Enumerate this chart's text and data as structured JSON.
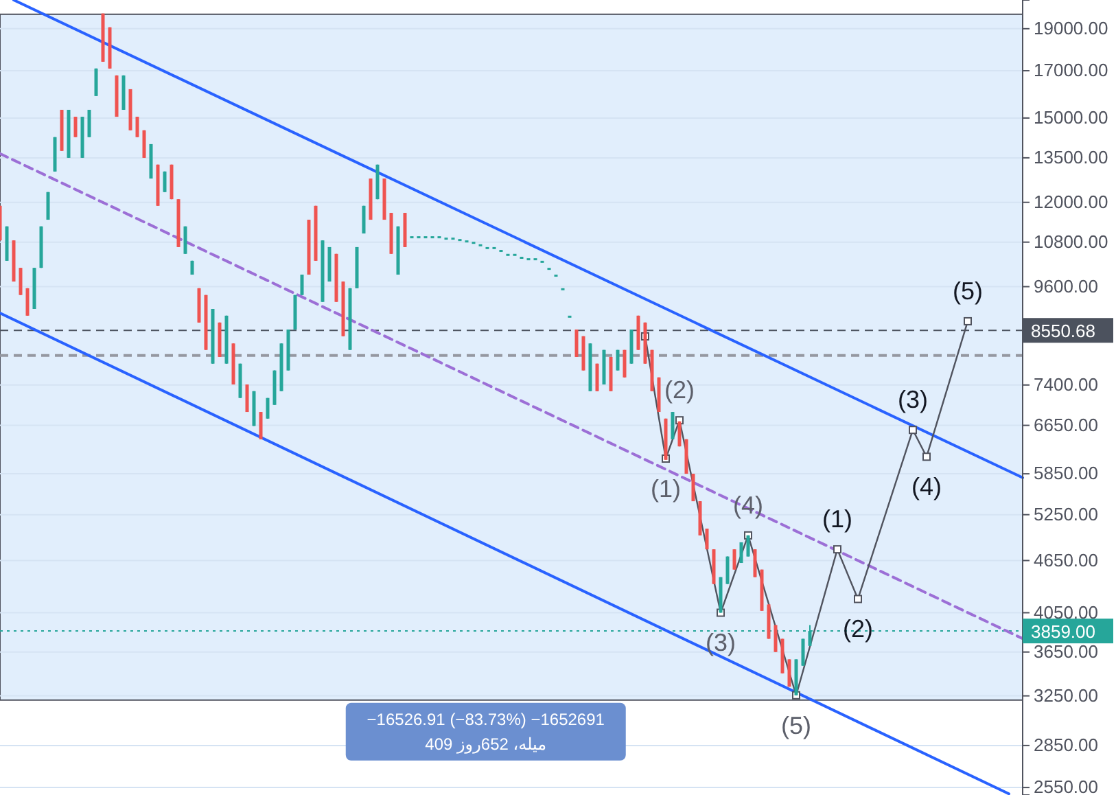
{
  "chart_data": {
    "type": "candlestick",
    "log": true,
    "grid": "y",
    "tick_labels": "y",
    "ylim": [
      2500,
      20500
    ],
    "yticks": [
      {
        "value": 2550,
        "label": "2550.00"
      },
      {
        "value": 2850,
        "label": "2850.00"
      },
      {
        "value": 3250,
        "label": "3250.00"
      },
      {
        "value": 3650,
        "label": "3650.00"
      },
      {
        "value": 4050,
        "label": "4050.00"
      },
      {
        "value": 4650,
        "label": "4650.00"
      },
      {
        "value": 5250,
        "label": "5250.00"
      },
      {
        "value": 5850,
        "label": "5850.00"
      },
      {
        "value": 6650,
        "label": "6650.00"
      },
      {
        "value": 7400,
        "label": "7400.00"
      },
      {
        "value": 9600,
        "label": "9600.00"
      },
      {
        "value": 10800,
        "label": "10800.00"
      },
      {
        "value": 12000,
        "label": "12000.00"
      },
      {
        "value": 13500,
        "label": "13500.00"
      },
      {
        "value": 15000,
        "label": "15000.00"
      },
      {
        "value": 17000,
        "label": "17000.00"
      },
      {
        "value": 19000,
        "label": "19000.00"
      }
    ],
    "categories": [
      null,
      null,
      null,
      null,
      null,
      null,
      null,
      null,
      null,
      null,
      null,
      null,
      null,
      null,
      null,
      null,
      null,
      null,
      null,
      null,
      null,
      null,
      null,
      null,
      null,
      null,
      null,
      null,
      null,
      null,
      null,
      null,
      null,
      null,
      null,
      null,
      null,
      null,
      null,
      null,
      null,
      null,
      null,
      null,
      null,
      null,
      null,
      null,
      null,
      null,
      null,
      null,
      null,
      null,
      null,
      null,
      null,
      null,
      null,
      null,
      null,
      null,
      null,
      null,
      null,
      null,
      null,
      null,
      null,
      null,
      null,
      null,
      null,
      null,
      null,
      null,
      null,
      null,
      null,
      null,
      null,
      null,
      null,
      null,
      null,
      null,
      null,
      null,
      null,
      null,
      null,
      null,
      null,
      null,
      null,
      null,
      null,
      null,
      null,
      null,
      null,
      null,
      null,
      null,
      null,
      null,
      null,
      null,
      null,
      null,
      null,
      null,
      null,
      null,
      null,
      null,
      null,
      null,
      null,
      null,
      null,
      null,
      null,
      null,
      null,
      null,
      null,
      null,
      null,
      null,
      null,
      null,
      null,
      null,
      null,
      null,
      null,
      null,
      null,
      null,
      null,
      null,
      null,
      null,
      null,
      null,
      null,
      null,
      null,
      null
    ],
    "ohlc": [
      [
        11890,
        11890,
        10850,
        10850
      ],
      [
        10280,
        11260,
        10280,
        11260
      ],
      [
        10850,
        10850,
        9730,
        9730
      ],
      [
        10090,
        10090,
        9390,
        9390
      ],
      [
        9560,
        9560,
        8890,
        8890
      ],
      [
        9050,
        10090,
        9050,
        10090
      ],
      [
        10090,
        11260,
        10090,
        11260
      ],
      [
        11460,
        12330,
        11460,
        12330
      ],
      [
        13020,
        14260,
        13020,
        14260
      ],
      [
        15330,
        15330,
        13750,
        13750
      ],
      [
        13500,
        15330,
        13500,
        15330
      ],
      [
        15050,
        15050,
        14260,
        14260
      ],
      [
        13500,
        15050,
        13500,
        15050
      ],
      [
        14260,
        15330,
        14260,
        15330
      ],
      [
        15900,
        17100,
        15900,
        17100
      ],
      [
        19780,
        19780,
        17410,
        17410
      ],
      [
        19070,
        19070,
        17100,
        17100
      ],
      [
        16790,
        16790,
        15050,
        15050
      ],
      [
        15330,
        16790,
        15330,
        16790
      ],
      [
        16190,
        16190,
        14520,
        14520
      ],
      [
        15050,
        15050,
        14260,
        14260
      ],
      [
        14520,
        14520,
        13500,
        13500
      ],
      [
        12780,
        14000,
        12780,
        14000
      ],
      [
        13260,
        13260,
        11890,
        11890
      ],
      [
        12330,
        13020,
        12330,
        13020
      ],
      [
        13260,
        13260,
        12100,
        12100
      ],
      [
        12100,
        12100,
        10660,
        10660
      ],
      [
        10470,
        11260,
        10470,
        11260
      ],
      [
        9910,
        10280,
        9910,
        10280
      ],
      [
        9560,
        9560,
        8730,
        8730
      ],
      [
        9390,
        9390,
        8120,
        8120
      ],
      [
        7830,
        9050,
        7830,
        9050
      ],
      [
        8730,
        8730,
        7970,
        7970
      ],
      [
        7830,
        8890,
        7830,
        8890
      ],
      [
        8260,
        8260,
        7410,
        7410
      ],
      [
        7150,
        7830,
        7150,
        7830
      ],
      [
        7410,
        7410,
        6890,
        6890
      ],
      [
        6640,
        7280,
        6640,
        7280
      ],
      [
        6890,
        6890,
        6410,
        6410
      ],
      [
        6770,
        7150,
        6770,
        7150
      ],
      [
        7020,
        7690,
        7020,
        7690
      ],
      [
        7280,
        8260,
        7280,
        8260
      ],
      [
        7690,
        8570,
        7690,
        8570
      ],
      [
        8570,
        9390,
        8570,
        9390
      ],
      [
        9390,
        9910,
        9390,
        9910
      ],
      [
        11460,
        11460,
        9910,
        9910
      ],
      [
        11890,
        11890,
        10280,
        10280
      ],
      [
        9220,
        10850,
        9220,
        10850
      ],
      [
        9730,
        10660,
        9730,
        10660
      ],
      [
        10470,
        10470,
        9220,
        9220
      ],
      [
        9730,
        9730,
        8420,
        8420
      ],
      [
        8120,
        9560,
        8120,
        9560
      ],
      [
        9560,
        10660,
        9560,
        10660
      ],
      [
        11050,
        11890,
        11050,
        11890
      ],
      [
        12780,
        12780,
        11460,
        11460
      ],
      [
        12100,
        13260,
        12100,
        13260
      ],
      [
        12780,
        12780,
        11460,
        11460
      ],
      [
        11670,
        11670,
        10470,
        10470
      ],
      [
        9910,
        11260,
        9910,
        11260
      ],
      [
        11670,
        11670,
        10660,
        10660
      ],
      [
        10970,
        10970,
        10970,
        10970
      ],
      [
        10970,
        10970,
        10970,
        10970
      ],
      [
        10970,
        10970,
        10970,
        10970
      ],
      [
        10970,
        10970,
        10970,
        10970
      ],
      [
        10970,
        10970,
        10970,
        10970
      ],
      [
        10930,
        10930,
        10930,
        10930
      ],
      [
        10930,
        10930,
        10930,
        10930
      ],
      [
        10890,
        10890,
        10890,
        10890
      ],
      [
        10850,
        10850,
        10850,
        10850
      ],
      [
        10810,
        10810,
        10810,
        10810
      ],
      [
        10740,
        10740,
        10740,
        10740
      ],
      [
        10660,
        10660,
        10660,
        10660
      ],
      [
        10660,
        10660,
        10660,
        10660
      ],
      [
        10580,
        10580,
        10580,
        10580
      ],
      [
        10470,
        10470,
        10470,
        10470
      ],
      [
        10470,
        10470,
        10470,
        10470
      ],
      [
        10390,
        10390,
        10390,
        10390
      ],
      [
        10350,
        10350,
        10350,
        10350
      ],
      [
        10350,
        10350,
        10350,
        10350
      ],
      [
        10280,
        10280,
        10280,
        10280
      ],
      [
        10090,
        10090,
        10090,
        10090
      ],
      [
        9910,
        9910,
        9910,
        9910
      ],
      [
        9560,
        9560,
        9560,
        9560
      ],
      [
        8890,
        8890,
        8890,
        8890
      ],
      [
        8570,
        8570,
        7970,
        7970
      ],
      [
        8420,
        8420,
        7690,
        7690
      ],
      [
        7280,
        8260,
        7280,
        8260
      ],
      [
        7830,
        7830,
        7280,
        7280
      ],
      [
        7410,
        8120,
        7410,
        8120
      ],
      [
        7970,
        7970,
        7280,
        7280
      ],
      [
        7690,
        8120,
        7690,
        8120
      ],
      [
        8120,
        8120,
        7550,
        7550
      ],
      [
        7830,
        8570,
        7830,
        8570
      ],
      [
        8890,
        8890,
        8120,
        8120
      ],
      [
        8730,
        8730,
        7830,
        7830
      ],
      [
        8120,
        8120,
        7280,
        7280
      ],
      [
        7550,
        7550,
        6890,
        6890
      ],
      [
        6770,
        6770,
        6070,
        6070
      ],
      [
        6410,
        6890,
        6410,
        6890
      ],
      [
        6720,
        6720,
        6290,
        6290
      ],
      [
        6410,
        6410,
        5850,
        5850
      ],
      [
        5850,
        5850,
        5440,
        5440
      ],
      [
        5440,
        5440,
        4970,
        4970
      ],
      [
        5060,
        5060,
        4790,
        4790
      ],
      [
        4790,
        4790,
        4370,
        4370
      ],
      [
        4050,
        4450,
        4050,
        4450
      ],
      [
        4370,
        4700,
        4370,
        4700
      ],
      [
        4790,
        4790,
        4540,
        4540
      ],
      [
        4620,
        4880,
        4620,
        4880
      ],
      [
        4700,
        4970,
        4700,
        4970
      ],
      [
        4790,
        4790,
        4450,
        4450
      ],
      [
        4540,
        4540,
        4070,
        4070
      ],
      [
        4140,
        4140,
        3780,
        3780
      ],
      [
        3920,
        3920,
        3650,
        3650
      ],
      [
        3780,
        3780,
        3450,
        3450
      ],
      [
        3580,
        3580,
        3330,
        3330
      ],
      [
        3255,
        3580,
        3255,
        3580
      ],
      [
        3520,
        3780,
        3520,
        3780
      ],
      [
        3710,
        3920,
        3710,
        3859
      ],
      null,
      null,
      null,
      null,
      null,
      null,
      null,
      null,
      null,
      null,
      null,
      null,
      null,
      null,
      null,
      null,
      null,
      null,
      null,
      null,
      null,
      null,
      null,
      null,
      null,
      null,
      null,
      null,
      null,
      null,
      null
    ],
    "series": [
      {
        "type": "line",
        "color": "#2962ff",
        "line_style": "solid",
        "values": [
          null,
          null,
          20500,
          null,
          null,
          null,
          null,
          null,
          null,
          null,
          null,
          null,
          null,
          null,
          null,
          null,
          null,
          null,
          null,
          null,
          null,
          null,
          null,
          null,
          null,
          null,
          null,
          null,
          null,
          null,
          null,
          null,
          null,
          null,
          null,
          null,
          null,
          null,
          null,
          null,
          null,
          null,
          null,
          null,
          null,
          null,
          null,
          null,
          null,
          null,
          null,
          null,
          null,
          null,
          null,
          null,
          null,
          null,
          null,
          null,
          null,
          null,
          null,
          null,
          null,
          null,
          null,
          null,
          null,
          null,
          null,
          null,
          null,
          null,
          null,
          null,
          null,
          null,
          null,
          null,
          null,
          null,
          null,
          null,
          null,
          null,
          null,
          null,
          null,
          null,
          null,
          null,
          null,
          null,
          null,
          null,
          null,
          null,
          null,
          null,
          null,
          null,
          null,
          null,
          null,
          null,
          null,
          null,
          null,
          null,
          null,
          null,
          null,
          null,
          null,
          null,
          null,
          null,
          null,
          null,
          null,
          null,
          null,
          null,
          null,
          null,
          null,
          null,
          null,
          null,
          null,
          null,
          null,
          null,
          null,
          null,
          null,
          null,
          null,
          null,
          null,
          null,
          null,
          null,
          null,
          null,
          null,
          null,
          null,
          5790
        ]
      },
      {
        "type": "line",
        "color": "#2962ff",
        "line_style": "solid",
        "values": [
          8950,
          null,
          null,
          null,
          null,
          null,
          null,
          null,
          null,
          null,
          null,
          null,
          null,
          null,
          null,
          null,
          null,
          null,
          null,
          null,
          null,
          null,
          null,
          null,
          null,
          null,
          null,
          null,
          null,
          null,
          null,
          null,
          null,
          null,
          null,
          null,
          null,
          null,
          null,
          null,
          null,
          null,
          null,
          null,
          null,
          null,
          null,
          null,
          null,
          null,
          null,
          null,
          null,
          null,
          null,
          null,
          null,
          null,
          null,
          null,
          null,
          null,
          null,
          null,
          null,
          null,
          null,
          null,
          null,
          null,
          null,
          null,
          null,
          null,
          null,
          null,
          null,
          null,
          null,
          null,
          null,
          null,
          null,
          null,
          null,
          null,
          null,
          null,
          null,
          null,
          null,
          null,
          null,
          null,
          null,
          null,
          null,
          null,
          null,
          null,
          null,
          null,
          null,
          null,
          null,
          null,
          null,
          null,
          null,
          null,
          null,
          null,
          null,
          null,
          null,
          null,
          null,
          null,
          null,
          null,
          null,
          null,
          null,
          null,
          null,
          null,
          null,
          null,
          null,
          null,
          null,
          null,
          null,
          null,
          null,
          null,
          null,
          null,
          null,
          null,
          null,
          null,
          null,
          null,
          null,
          null,
          null,
          2508,
          null,
          null
        ]
      },
      {
        "type": "line",
        "color": "#9c6fd6",
        "line_style": "dashed",
        "values": [
          13650,
          null,
          null,
          null,
          null,
          null,
          null,
          null,
          null,
          null,
          null,
          null,
          null,
          null,
          null,
          null,
          null,
          null,
          null,
          null,
          null,
          null,
          null,
          null,
          null,
          null,
          null,
          null,
          null,
          null,
          null,
          null,
          null,
          null,
          null,
          null,
          null,
          null,
          null,
          null,
          null,
          null,
          null,
          null,
          null,
          null,
          null,
          null,
          null,
          null,
          null,
          null,
          null,
          null,
          null,
          null,
          null,
          null,
          null,
          null,
          null,
          null,
          null,
          null,
          null,
          null,
          null,
          null,
          null,
          null,
          null,
          null,
          null,
          null,
          null,
          null,
          null,
          null,
          null,
          null,
          null,
          null,
          null,
          null,
          null,
          null,
          null,
          null,
          null,
          null,
          null,
          null,
          null,
          null,
          null,
          null,
          null,
          null,
          null,
          null,
          null,
          null,
          null,
          null,
          null,
          null,
          null,
          null,
          null,
          null,
          null,
          null,
          null,
          null,
          null,
          null,
          null,
          null,
          null,
          null,
          null,
          null,
          null,
          null,
          null,
          null,
          null,
          null,
          null,
          null,
          null,
          null,
          null,
          null,
          null,
          null,
          null,
          null,
          null,
          null,
          null,
          null,
          null,
          null,
          null,
          null,
          null,
          null,
          null,
          3782
        ]
      },
      {
        "type": "line",
        "color": "#50535e",
        "line_style": "solid",
        "marker": "square",
        "values": [
          null,
          null,
          null,
          null,
          null,
          null,
          null,
          null,
          null,
          null,
          null,
          null,
          null,
          null,
          null,
          null,
          null,
          null,
          null,
          null,
          null,
          null,
          null,
          null,
          null,
          null,
          null,
          null,
          null,
          null,
          null,
          null,
          null,
          null,
          null,
          null,
          null,
          null,
          null,
          null,
          null,
          null,
          null,
          null,
          null,
          null,
          null,
          null,
          null,
          null,
          null,
          null,
          null,
          null,
          null,
          null,
          null,
          null,
          null,
          null,
          null,
          null,
          null,
          null,
          null,
          null,
          null,
          null,
          null,
          null,
          null,
          null,
          null,
          null,
          null,
          null,
          null,
          null,
          null,
          null,
          null,
          null,
          null,
          null,
          null,
          null,
          null,
          null,
          null,
          null,
          null,
          null,
          null,
          null,
          8416,
          null,
          null,
          6090,
          null,
          6740,
          null,
          null,
          null,
          null,
          null,
          4050,
          null,
          null,
          null,
          4970,
          null,
          null,
          null,
          null,
          null,
          null,
          3255,
          null,
          null,
          null,
          null,
          null,
          4790,
          null,
          null,
          4200,
          null,
          null,
          null,
          null,
          null,
          null,
          null,
          6570,
          null,
          6120,
          null,
          null,
          null,
          null,
          null,
          8760,
          null,
          null,
          null,
          null,
          null,
          null,
          null,
          null
        ]
      }
    ],
    "ref_lines": [
      {
        "axis": "y",
        "value": 8550.68,
        "label": "8550.68",
        "color": "#4c525e",
        "line_style": "dashed"
      },
      {
        "axis": "y",
        "value": 3859,
        "label": "3859.00",
        "color": "#26a69a",
        "line_style": "dotted"
      },
      {
        "axis": "y",
        "value": 8000,
        "color": "#9598a1",
        "line_style": "dashed"
      }
    ],
    "bands": [
      {
        "axis": "y",
        "from": 3214,
        "to": 19740,
        "color": "#e1eefc",
        "label": "−16526.91 (−83.73%) −1652691\nمیله، 652روز 409"
      }
    ],
    "annotations": [
      "(1)",
      "(2)",
      "(3)",
      "(4)",
      "(5)",
      "(1)",
      "(2)",
      "(3)",
      "(4)",
      "(5)"
    ]
  }
}
